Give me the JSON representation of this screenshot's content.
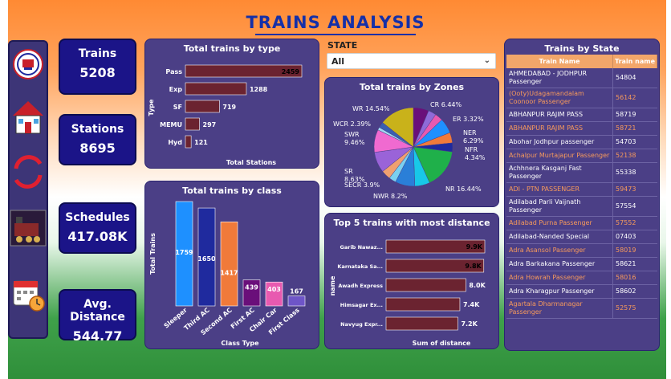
{
  "page": {
    "title": "TRAINS ANALYSIS"
  },
  "sidebar": {
    "icons": [
      {
        "name": "railway-logo-icon"
      },
      {
        "name": "home-icon"
      },
      {
        "name": "refresh-icon"
      },
      {
        "name": "train-icon"
      },
      {
        "name": "calendar-icon"
      }
    ]
  },
  "kpis": [
    {
      "label": "Trains",
      "value": "5208"
    },
    {
      "label": "Stations",
      "value": "8695"
    },
    {
      "label": "Schedules",
      "value": "417.08K"
    },
    {
      "label": "Avg. Distance",
      "value": "544.77"
    }
  ],
  "filter": {
    "label": "STATE",
    "value": "All"
  },
  "colors": {
    "panel": "#4b3f86",
    "bar_dark": "#6b2330",
    "accent_orange": "#f2a66a"
  },
  "chart_data": [
    {
      "id": "by_type",
      "type": "bar",
      "orientation": "horizontal",
      "title": "Total trains by type",
      "xlabel": "Total Stations",
      "ylabel": "Type",
      "categories": [
        "Pass",
        "Exp",
        "SF",
        "MEMU",
        "Hyd"
      ],
      "values": [
        2459,
        1288,
        719,
        297,
        121
      ],
      "value_labels": [
        "2459",
        "1288",
        "719",
        "297",
        "121"
      ],
      "color": "#6b2330"
    },
    {
      "id": "by_class",
      "type": "bar",
      "orientation": "vertical",
      "title": "Total trains by class",
      "xlabel": "Class Type",
      "ylabel": "Total Trains",
      "categories": [
        "Sleeper",
        "Third AC",
        "Second AC",
        "First AC",
        "Chair Car",
        "First Class"
      ],
      "values": [
        1759,
        1650,
        1417,
        439,
        403,
        167
      ],
      "value_labels": [
        "1759",
        "1650",
        "1417",
        "439",
        "403",
        "167"
      ],
      "colors": [
        "#1e90ff",
        "#1f2a9e",
        "#f07a3a",
        "#6a0f7a",
        "#e85ab0",
        "#6e55c8"
      ]
    },
    {
      "id": "by_zone",
      "type": "pie",
      "title": "Total trains by Zones",
      "slices": [
        {
          "label": "CR 6.44%",
          "value": 6.44,
          "color": "#6a0f7a"
        },
        {
          "label": "ER 3.32%",
          "value": 3.32,
          "color": "#8f6ad8"
        },
        {
          "label": "",
          "value": 3.3,
          "color": "#e85ab0"
        },
        {
          "label": "NER 6.29%",
          "value": 6.29,
          "color": "#1e90ff"
        },
        {
          "label": "NFR 4.34%",
          "value": 4.34,
          "color": "#f07a3a"
        },
        {
          "label": "",
          "value": 3.7,
          "color": "#1f2a9e"
        },
        {
          "label": "NR 16.44%",
          "value": 16.44,
          "color": "#1fb04a"
        },
        {
          "label": "",
          "value": 6.3,
          "color": "#18c8e8"
        },
        {
          "label": "NWR 8.2%",
          "value": 8.2,
          "color": "#2a7fd8"
        },
        {
          "label": "",
          "value": 3.0,
          "color": "#7ad0f0"
        },
        {
          "label": "SECR 3.9%",
          "value": 3.9,
          "color": "#f0a070"
        },
        {
          "label": "SR 8.63%",
          "value": 8.63,
          "color": "#9a63d8"
        },
        {
          "label": "SWR 9.46%",
          "value": 9.46,
          "color": "#f06ad0"
        },
        {
          "label": "",
          "value": 1.2,
          "color": "#a0d8f0"
        },
        {
          "label": "WCR 2.39%",
          "value": 2.39,
          "color": "#3a5fb0"
        },
        {
          "label": "WR 14.54%",
          "value": 14.54,
          "color": "#c9b21a"
        }
      ]
    },
    {
      "id": "top5_distance",
      "type": "bar",
      "orientation": "horizontal",
      "title": "Top 5 trains with most distance",
      "xlabel": "Sum of distance",
      "ylabel": "name",
      "categories": [
        "Garib Nawaz...",
        "Karnataka Sa...",
        "Awadh Express",
        "Himsagar Ex...",
        "Navyug Expr..."
      ],
      "values": [
        9.9,
        9.8,
        8.0,
        7.4,
        7.2
      ],
      "value_labels": [
        "9.9K",
        "9.8K",
        "8.0K",
        "7.4K",
        "7.2K"
      ],
      "unit": "K",
      "color": "#6b2330"
    }
  ],
  "trains_by_state": {
    "title": "Trains by State",
    "columns": [
      "Train Name",
      "Train name"
    ],
    "rows": [
      {
        "name": "AHMEDABAD - JODHPUR Passenger",
        "num": "54804",
        "hl": false
      },
      {
        "name": "(Ooty)Udagamandalam Coonoor Passenger",
        "num": "56142",
        "hl": true
      },
      {
        "name": "ABHANPUR RAJIM PASS",
        "num": "58719",
        "hl": false
      },
      {
        "name": "ABHANPUR RAJIM PASS",
        "num": "58721",
        "hl": true
      },
      {
        "name": "Abohar Jodhpur passenger",
        "num": "54703",
        "hl": false
      },
      {
        "name": "Achalpur Murtajapur Passenger",
        "num": "52138",
        "hl": true
      },
      {
        "name": "Achhnera Kasganj Fast Passenger",
        "num": "55338",
        "hl": false
      },
      {
        "name": "ADI - PTN PASSENGER",
        "num": "59473",
        "hl": true
      },
      {
        "name": "Adilabad Parli Vaijnath Passenger",
        "num": "57554",
        "hl": false
      },
      {
        "name": "Adilabad Purna Passenger",
        "num": "57552",
        "hl": true
      },
      {
        "name": "Adilabad-Nanded Special",
        "num": "07403",
        "hl": false
      },
      {
        "name": "Adra Asansol Passenger",
        "num": "58019",
        "hl": true
      },
      {
        "name": "Adra Barkakana Passenger",
        "num": "58621",
        "hl": false
      },
      {
        "name": "Adra Howrah Passenger",
        "num": "58016",
        "hl": true
      },
      {
        "name": "Adra Kharagpur Passenger",
        "num": "58602",
        "hl": false
      },
      {
        "name": "Agartala Dharmanagar Passenger",
        "num": "52575",
        "hl": true
      }
    ]
  }
}
